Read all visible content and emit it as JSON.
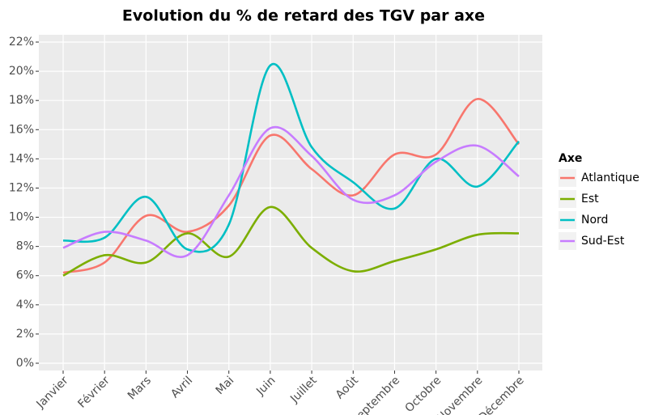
{
  "chart_data": {
    "type": "line",
    "title": "Evolution du % de retard des TGV par axe",
    "categories": [
      "Janvier",
      "Février",
      "Mars",
      "Avril",
      "Mai",
      "Juin",
      "Juillet",
      "Août",
      "Septembre",
      "Octobre",
      "Novembre",
      "Décembre"
    ],
    "legend_title": "Axe",
    "series": [
      {
        "name": "Atlantique",
        "color": "#f8766d",
        "values": [
          6.2,
          6.9,
          10.1,
          9.0,
          10.8,
          15.6,
          13.3,
          11.5,
          14.3,
          14.3,
          18.1,
          15.0
        ]
      },
      {
        "name": "Est",
        "color": "#7cae00",
        "values": [
          6.0,
          7.4,
          6.9,
          8.9,
          7.3,
          10.7,
          7.9,
          6.3,
          7.0,
          7.8,
          8.8,
          8.9
        ]
      },
      {
        "name": "Nord",
        "color": "#00bfc4",
        "values": [
          8.4,
          8.6,
          11.4,
          7.8,
          9.5,
          20.4,
          14.8,
          12.4,
          10.6,
          14.0,
          12.1,
          15.2
        ]
      },
      {
        "name": "Sud-Est",
        "color": "#c77cff",
        "values": [
          7.9,
          9.0,
          8.4,
          7.4,
          11.5,
          16.1,
          14.2,
          11.2,
          11.5,
          13.8,
          14.9,
          12.8
        ]
      }
    ],
    "ylim": [
      0,
      22
    ],
    "yticks": [
      {
        "value": 0,
        "label": "0%"
      },
      {
        "value": 2,
        "label": "2%"
      },
      {
        "value": 4,
        "label": "4%"
      },
      {
        "value": 6,
        "label": "6%"
      },
      {
        "value": 8,
        "label": "8%"
      },
      {
        "value": 10,
        "label": "10%"
      },
      {
        "value": 12,
        "label": "12%"
      },
      {
        "value": 14,
        "label": "14%"
      },
      {
        "value": 16,
        "label": "16%"
      },
      {
        "value": 18,
        "label": "18%"
      },
      {
        "value": 20,
        "label": "20%"
      },
      {
        "value": 22,
        "label": "22%"
      }
    ],
    "grid": true,
    "legend_position": "right"
  }
}
